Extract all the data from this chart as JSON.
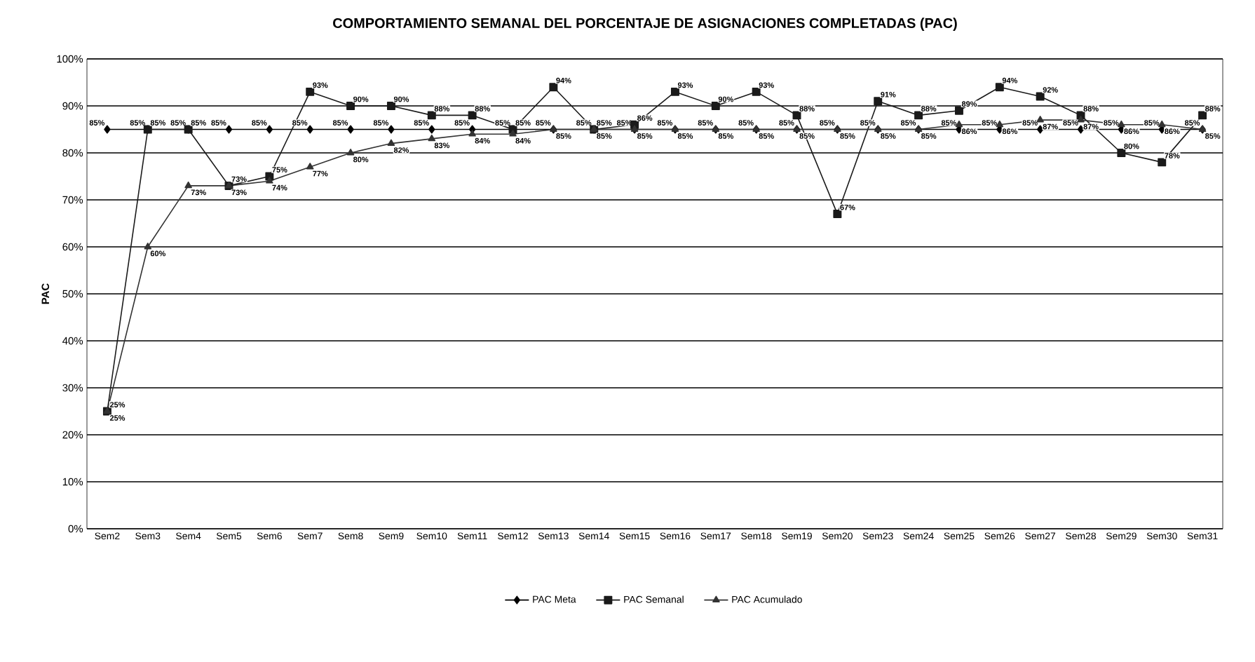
{
  "chart_data": {
    "type": "line",
    "title": "COMPORTAMIENTO SEMANAL DEL PORCENTAJE DE ASIGNACIONES COMPLETADAS (PAC)",
    "ylabel": "PAC",
    "categories": [
      "Sem2",
      "Sem3",
      "Sem4",
      "Sem5",
      "Sem6",
      "Sem7",
      "Sem8",
      "Sem9",
      "Sem10",
      "Sem11",
      "Sem12",
      "Sem13",
      "Sem14",
      "Sem15",
      "Sem16",
      "Sem17",
      "Sem18",
      "Sem19",
      "Sem20",
      "Sem23",
      "Sem24",
      "Sem25",
      "Sem26",
      "Sem27",
      "Sem28",
      "Sem29",
      "Sem30",
      "Sem31"
    ],
    "series": [
      {
        "name": "PAC Meta",
        "color": "#000000",
        "marker": "diamond",
        "values": [
          85,
          85,
          85,
          85,
          85,
          85,
          85,
          85,
          85,
          85,
          85,
          85,
          85,
          85,
          85,
          85,
          85,
          85,
          85,
          85,
          85,
          85,
          85,
          85,
          85,
          85,
          85,
          85
        ],
        "value_labels": [
          "85%",
          "85%",
          "85%",
          "85%",
          "85%",
          "85%",
          "85%",
          "85%",
          "85%",
          "85%",
          "85%",
          "85%",
          "85%",
          "85%",
          "85%",
          "85%",
          "85%",
          "85%",
          "85%",
          "85%",
          "85%",
          "85%",
          "85%",
          "85%",
          "85%",
          "85%",
          "85%",
          "85%"
        ]
      },
      {
        "name": "PAC Semanal",
        "color": "#1a1a1a",
        "marker": "square",
        "values": [
          25,
          85,
          85,
          73,
          75,
          93,
          90,
          90,
          88,
          88,
          85,
          94,
          85,
          86,
          93,
          90,
          93,
          88,
          67,
          91,
          88,
          89,
          94,
          92,
          88,
          80,
          78,
          88
        ],
        "value_labels": [
          "25%",
          "85%",
          "85%",
          "73%",
          "75%",
          "93%",
          "90%",
          "90%",
          "88%",
          "88%",
          "85%",
          "94%",
          "85%",
          "86%",
          "93%",
          "90%",
          "93%",
          "88%",
          "67%",
          "91%",
          "88%",
          "89%",
          "94%",
          "92%",
          "88%",
          "80%",
          "78%",
          "88%"
        ]
      },
      {
        "name": "PAC Acumulado",
        "color": "#333333",
        "marker": "triangle",
        "values": [
          25,
          60,
          73,
          73,
          74,
          77,
          80,
          82,
          83,
          84,
          84,
          85,
          85,
          85,
          85,
          85,
          85,
          85,
          85,
          85,
          85,
          86,
          86,
          87,
          87,
          86,
          86,
          85
        ],
        "value_labels": [
          "25%",
          "60%",
          "73%",
          "73%",
          "74%",
          "77%",
          "80%",
          "82%",
          "83%",
          "84%",
          "84%",
          "85%",
          "85%",
          "85%",
          "85%",
          "85%",
          "85%",
          "85%",
          "85%",
          "85%",
          "85%",
          "86%",
          "86%",
          "87%",
          "87%",
          "86%",
          "86%",
          "85%"
        ]
      }
    ],
    "ylim": [
      0,
      100
    ],
    "yticks": [
      {
        "value": 0,
        "label": "0%"
      },
      {
        "value": 10,
        "label": "10%"
      },
      {
        "value": 20,
        "label": "20%"
      },
      {
        "value": 30,
        "label": "30%"
      },
      {
        "value": 40,
        "label": "40%"
      },
      {
        "value": 50,
        "label": "50%"
      },
      {
        "value": 60,
        "label": "60%"
      },
      {
        "value": 70,
        "label": "70%"
      },
      {
        "value": 80,
        "label": "80%"
      },
      {
        "value": 90,
        "label": "90%"
      },
      {
        "value": 100,
        "label": "100%"
      }
    ],
    "grid": "y",
    "legend": "bottom",
    "line_style": "solid"
  }
}
